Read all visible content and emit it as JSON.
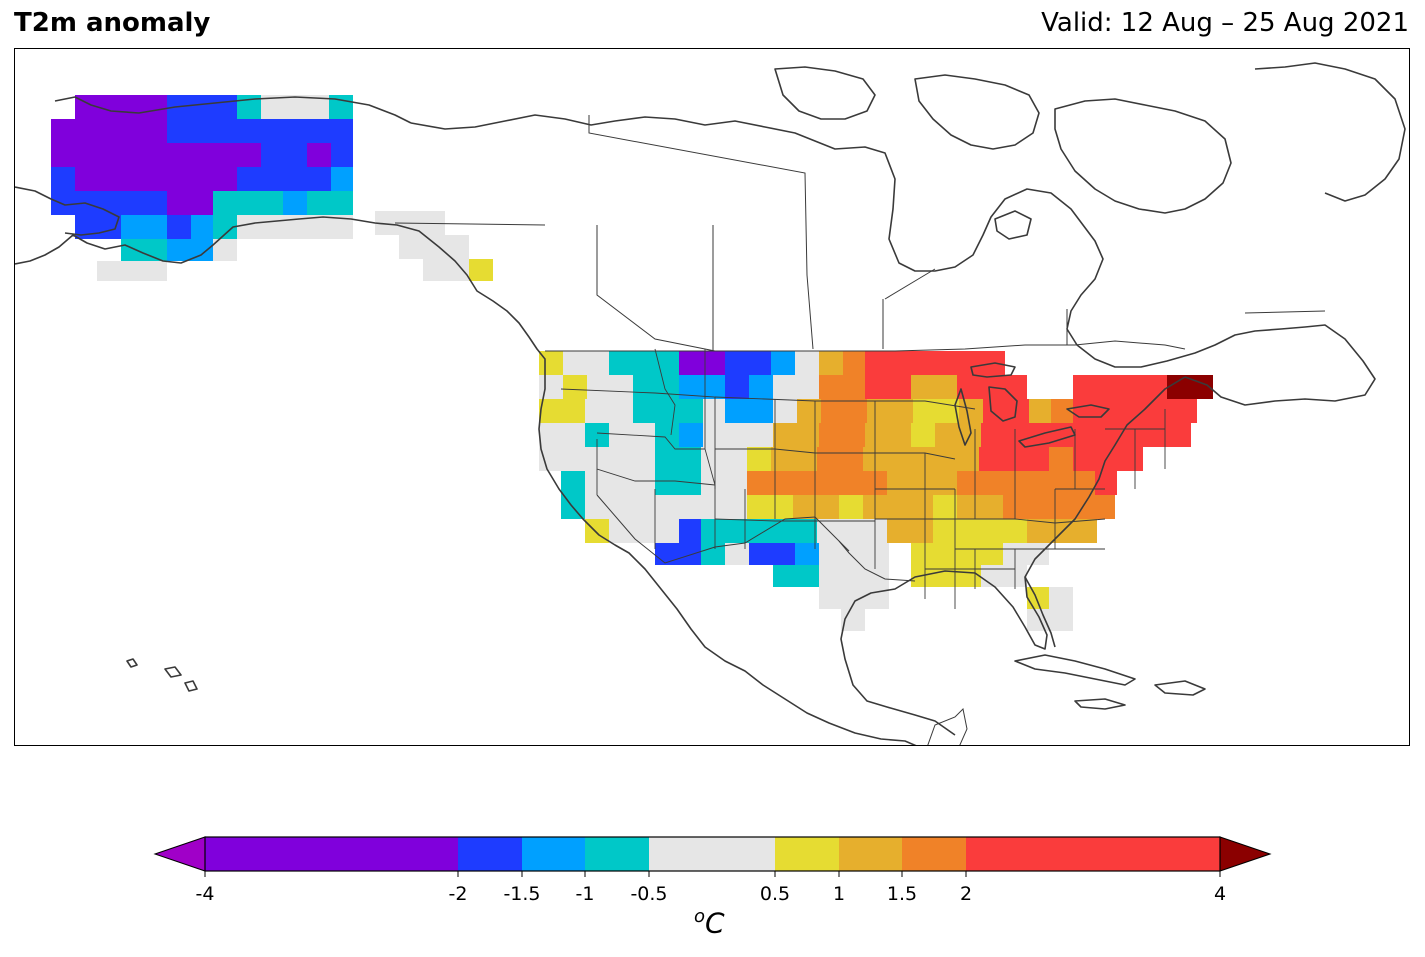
{
  "header": {
    "title": "T2m anomaly",
    "valid": "Valid: 12 Aug – 25 Aug 2021"
  },
  "colorbar": {
    "unit_super": "o",
    "unit_main": "C",
    "bins": [
      {
        "from": -4,
        "to": -2,
        "color": "#8000dc"
      },
      {
        "from": -2,
        "to": -1.5,
        "color": "#1e3cff"
      },
      {
        "from": -1.5,
        "to": -1,
        "color": "#00a0ff"
      },
      {
        "from": -1,
        "to": -0.5,
        "color": "#00c8c8"
      },
      {
        "from": -0.5,
        "to": 0.5,
        "color": "#e6e6e6"
      },
      {
        "from": 0.5,
        "to": 1,
        "color": "#e6dc32"
      },
      {
        "from": 1,
        "to": 1.5,
        "color": "#e6af2d"
      },
      {
        "from": 1.5,
        "to": 2,
        "color": "#f08228"
      },
      {
        "from": 2,
        "to": 4,
        "color": "#fa3c3c"
      }
    ],
    "under_color": "#a000c8",
    "over_color": "#8b0000",
    "ticks": [
      "-4",
      "-2",
      "-1.5",
      "-1",
      "-0.5",
      "0.5",
      "1",
      "1.5",
      "2",
      "4"
    ]
  },
  "map_data": {
    "region": "North America",
    "anomaly_regions": [
      {
        "area": "Alaska west",
        "bin": "< -2"
      },
      {
        "area": "Alaska east",
        "bin": "-2 to -1.5"
      },
      {
        "area": "Alaska south coast",
        "bin": "-1 to -0.5"
      },
      {
        "area": "Pacific Northwest",
        "bin": "-0.5 to 1"
      },
      {
        "area": "Montana",
        "bin": "< -2 to -1"
      },
      {
        "area": "Southwest / New Mexico",
        "bin": "-2 to -0.5"
      },
      {
        "area": "Texas",
        "bin": "-0.5 to 0.5"
      },
      {
        "area": "Great Plains",
        "bin": "0.5 to 2"
      },
      {
        "area": "Upper Midwest",
        "bin": "2 to 4"
      },
      {
        "area": "Northeast US",
        "bin": "2 to 4"
      },
      {
        "area": "Maine",
        "bin": "> 4"
      },
      {
        "area": "Southeast",
        "bin": "0.5 to 1.5"
      },
      {
        "area": "Florida",
        "bin": "-0.5 to 1"
      }
    ]
  }
}
